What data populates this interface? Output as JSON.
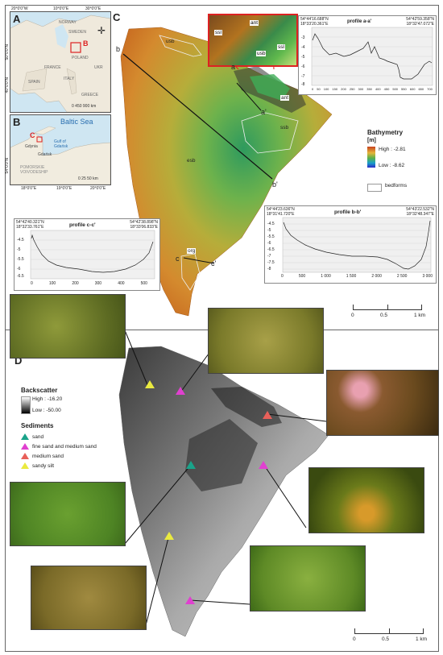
{
  "panels": {
    "a": "A",
    "b": "B",
    "c": "C",
    "d": "D"
  },
  "inset_a": {
    "lon_ticks": [
      "20°0'0\"W",
      "10°0'0\"E",
      "30°0'0\"E"
    ],
    "lat_ticks": [
      "50°0'0\"N",
      "40°0'0\"N"
    ],
    "marker": "B",
    "places": [
      "NORWAY",
      "SWEDEN",
      "POLAND",
      "FRANCE",
      "SPAIN",
      "ITALY",
      "GREECE",
      "UKR"
    ],
    "scale": "0  450  900 km"
  },
  "inset_b": {
    "sea": "Baltic Sea",
    "marker": "C",
    "places": [
      "Gdynia",
      "Gdańsk",
      "Gulf of Gdańsk",
      "POMORSKIE VOIVODESHIP"
    ],
    "lat_tick": "54°0'0\"N",
    "lon_ticks": [
      "18°0'0\"E",
      "19°0'0\"E",
      "20°0'0\"E"
    ],
    "scale": "0  25  50 km"
  },
  "map_c": {
    "labels": {
      "usb": "usb",
      "ant": "ant",
      "ssb": "ssb",
      "esb": "esb",
      "org": "org",
      "ssl": "ssl"
    },
    "profile_points": [
      "a",
      "a'",
      "b",
      "b'",
      "c",
      "c'"
    ],
    "legend": {
      "title": "Bathymetry",
      "unit": "[m]",
      "high": "High : -2.81",
      "low": "Low : -8.62",
      "bedforms": "bedforms"
    },
    "scale": [
      "0",
      "0.5",
      "1 km"
    ]
  },
  "profile_a": {
    "title": "profile a-a'",
    "left_coord": [
      "54°44'16.688\"N",
      "18°33'20.361\"E"
    ],
    "right_coord": [
      "54°42'59.358\"N",
      "18°32'47.072\"E"
    ],
    "yticks": [
      "-3",
      "-4",
      "-5",
      "-6",
      "-7",
      "-8"
    ],
    "xticks": [
      "0",
      "50",
      "100",
      "150",
      "200",
      "250",
      "300",
      "350",
      "400",
      "450",
      "500",
      "550",
      "600",
      "650",
      "700"
    ]
  },
  "profile_b": {
    "title": "profile b-b'",
    "left_coord": [
      "54°44'23.636\"N",
      "18°31'41.720\"E"
    ],
    "right_coord": [
      "54°43'22.532\"N",
      "18°32'48.347\"E"
    ],
    "yticks": [
      "-4.5",
      "-5",
      "-5.5",
      "-6",
      "-6.5",
      "-7",
      "-7.5",
      "-8"
    ],
    "xticks": [
      "0",
      "500",
      "1 000",
      "1 500",
      "2 000",
      "2 500",
      "3 000"
    ]
  },
  "profile_c": {
    "title": "profile c-c'",
    "left_coord": [
      "54°42'40.321\"N",
      "18°32'33.761\"E"
    ],
    "right_coord": [
      "54°42'38.898\"N",
      "18°33'06.833\"E"
    ],
    "yticks": [
      "-4.5",
      "-5",
      "-5.5",
      "-6",
      "-6.5"
    ],
    "xticks": [
      "0",
      "100",
      "200",
      "300",
      "400",
      "500"
    ]
  },
  "map_d": {
    "legend": {
      "title": "Backscatter",
      "high": "High : -16.20",
      "low": "Low : -50.00",
      "sediments_title": "Sediments",
      "items": [
        {
          "label": "sand",
          "color": "#1aa38a"
        },
        {
          "label": "fine sand and medium sand",
          "color": "#e040d0"
        },
        {
          "label": "medium sand",
          "color": "#e8605a"
        },
        {
          "label": "sandy silt",
          "color": "#eaea40"
        }
      ]
    },
    "scale": [
      "0",
      "0.5",
      "1 km"
    ]
  }
}
